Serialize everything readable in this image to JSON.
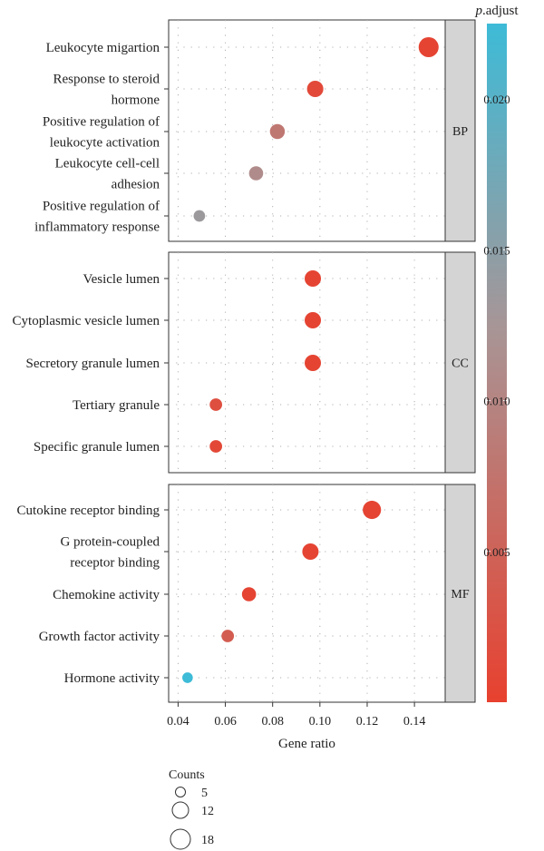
{
  "chart_data": {
    "type": "scatter",
    "xlabel": "Gene ratio",
    "xlim": [
      0.036,
      0.153
    ],
    "x_ticks": [
      0.04,
      0.06,
      0.08,
      0.1,
      0.12,
      0.14
    ],
    "x_tick_labels": [
      "0.04",
      "0.06",
      "0.08",
      "0.10",
      "0.12",
      "0.14"
    ],
    "color_legend": {
      "title_italic": "p",
      "title_rest": ".adjust",
      "min": 0.0,
      "max": 0.0225,
      "ticks": [
        0.005,
        0.01,
        0.015,
        0.02
      ],
      "tick_labels": [
        "0.005",
        "0.010",
        "0.015",
        "0.020"
      ],
      "low_color": "#e8412f",
      "mid_color": "#a89596",
      "high_color": "#3dbbd7"
    },
    "size_legend": {
      "title": "Counts",
      "values": [
        5,
        12,
        18
      ],
      "labels": [
        "5",
        "12",
        "18"
      ]
    },
    "panels": [
      {
        "label": "BP",
        "terms": [
          {
            "label": [
              "Leukocyte migartion"
            ],
            "x": 0.146,
            "count": 18,
            "p": 0.0005
          },
          {
            "label": [
              "Response to steroid",
              "hormone"
            ],
            "x": 0.098,
            "count": 12,
            "p": 0.0012
          },
          {
            "label": [
              "Positive regulation of",
              "leukocyte activation"
            ],
            "x": 0.082,
            "count": 10,
            "p": 0.008
          },
          {
            "label": [
              "Leukocyte cell-cell",
              "adhesion"
            ],
            "x": 0.073,
            "count": 9,
            "p": 0.011
          },
          {
            "label": [
              "Positive regulation of",
              "inflammatory response"
            ],
            "x": 0.049,
            "count": 6,
            "p": 0.0135
          }
        ]
      },
      {
        "label": "CC",
        "terms": [
          {
            "label": [
              "Vesicle lumen"
            ],
            "x": 0.097,
            "count": 12,
            "p": 0.0005
          },
          {
            "label": [
              "Cytoplasmic vesicle lumen"
            ],
            "x": 0.097,
            "count": 12,
            "p": 0.0005
          },
          {
            "label": [
              "Secretory granule lumen"
            ],
            "x": 0.097,
            "count": 12,
            "p": 0.0005
          },
          {
            "label": [
              "Tertiary granule"
            ],
            "x": 0.056,
            "count": 7,
            "p": 0.002
          },
          {
            "label": [
              "Specific granule lumen"
            ],
            "x": 0.056,
            "count": 7,
            "p": 0.001
          }
        ]
      },
      {
        "label": "MF",
        "terms": [
          {
            "label": [
              "Cutokine receptor binding"
            ],
            "x": 0.122,
            "count": 15,
            "p": 0.0005
          },
          {
            "label": [
              "G protein-coupled",
              "receptor binding"
            ],
            "x": 0.096,
            "count": 12,
            "p": 0.0005
          },
          {
            "label": [
              "Chemokine activity"
            ],
            "x": 0.07,
            "count": 9,
            "p": 0.0005
          },
          {
            "label": [
              "Growth factor activity"
            ],
            "x": 0.061,
            "count": 7,
            "p": 0.004
          },
          {
            "label": [
              "Hormone activity"
            ],
            "x": 0.044,
            "count": 5,
            "p": 0.0225
          }
        ]
      }
    ]
  }
}
